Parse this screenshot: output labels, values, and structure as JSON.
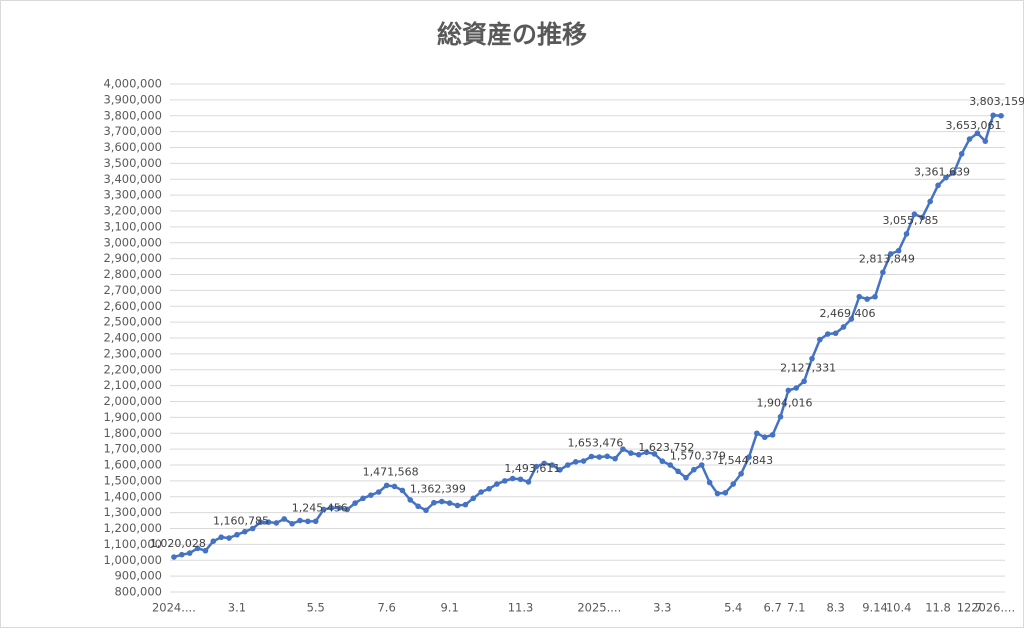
{
  "chart_data": {
    "type": "line",
    "title": "総資産の推移",
    "categories": [
      "2024....",
      null,
      null,
      null,
      null,
      null,
      null,
      null,
      "3.1",
      null,
      null,
      null,
      null,
      null,
      null,
      null,
      null,
      null,
      "5.5",
      null,
      null,
      null,
      null,
      null,
      null,
      null,
      null,
      "7.6",
      null,
      null,
      null,
      null,
      null,
      null,
      null,
      "9.1",
      null,
      null,
      null,
      null,
      null,
      null,
      null,
      null,
      "11.3",
      null,
      null,
      null,
      null,
      null,
      null,
      null,
      null,
      null,
      "2025....",
      null,
      null,
      null,
      null,
      null,
      null,
      null,
      "3.3",
      null,
      null,
      null,
      null,
      null,
      null,
      null,
      null,
      "5.4",
      null,
      null,
      null,
      null,
      "6.7",
      null,
      null,
      "7.1",
      null,
      null,
      null,
      null,
      "8.3",
      null,
      null,
      null,
      null,
      "9.14",
      null,
      null,
      "10.4",
      null,
      null,
      null,
      null,
      "11.8",
      null,
      null,
      null,
      "12.7",
      null,
      null,
      "2026....",
      null
    ],
    "values": [
      1020028,
      1035000,
      1045000,
      1075000,
      1060000,
      1120000,
      1145000,
      1140000,
      1160785,
      1180000,
      1200000,
      1240000,
      1240000,
      1235000,
      1260000,
      1230000,
      1250000,
      1245000,
      1245456,
      1320000,
      1330000,
      1330000,
      1320000,
      1360000,
      1390000,
      1410000,
      1430000,
      1471568,
      1465000,
      1440000,
      1380000,
      1340000,
      1315000,
      1362399,
      1370000,
      1360000,
      1345000,
      1350000,
      1390000,
      1430000,
      1450000,
      1480000,
      1500000,
      1515000,
      1510000,
      1493611,
      1590000,
      1610000,
      1600000,
      1570000,
      1600000,
      1620000,
      1625000,
      1653476,
      1650000,
      1655000,
      1640000,
      1700000,
      1675000,
      1665000,
      1680000,
      1670000,
      1623752,
      1600000,
      1560000,
      1520000,
      1570379,
      1600000,
      1490000,
      1420000,
      1425000,
      1480000,
      1544843,
      1650000,
      1800000,
      1775000,
      1790000,
      1904016,
      2070000,
      2085000,
      2127331,
      2270000,
      2390000,
      2425000,
      2430000,
      2469406,
      2520000,
      2660000,
      2645000,
      2660000,
      2813849,
      2930000,
      2950000,
      3055785,
      3180000,
      3160000,
      3260000,
      3361639,
      3410000,
      3440000,
      3560000,
      3653061,
      3690000,
      3640000,
      3803159,
      3800000
    ],
    "value_labels": [
      "1,020,028",
      null,
      null,
      null,
      null,
      null,
      null,
      null,
      "1,160,785",
      null,
      null,
      null,
      null,
      null,
      null,
      null,
      null,
      null,
      "1,245,456",
      null,
      null,
      null,
      null,
      null,
      null,
      null,
      null,
      "1,471,568",
      null,
      null,
      null,
      null,
      null,
      "1,362,399",
      null,
      null,
      null,
      null,
      null,
      null,
      null,
      null,
      null,
      null,
      null,
      "1,493,611",
      null,
      null,
      null,
      null,
      null,
      null,
      null,
      "1,653,476",
      null,
      null,
      null,
      null,
      null,
      null,
      null,
      null,
      "1,623,752",
      null,
      null,
      null,
      "1,570,379",
      null,
      null,
      null,
      null,
      null,
      "1,544,843",
      null,
      null,
      null,
      null,
      "1,904,016",
      null,
      null,
      "2,127,331",
      null,
      null,
      null,
      null,
      "2,469,406",
      null,
      null,
      null,
      null,
      "2,813,849",
      null,
      null,
      "3,055,785",
      null,
      null,
      null,
      "3,361,639",
      null,
      null,
      null,
      "3,653,061",
      null,
      null,
      "3,803,159",
      null
    ],
    "color": "#4472c4",
    "ylim": [
      800000,
      4000000
    ],
    "yticks": [
      {
        "value": 800000,
        "label": "800,000"
      },
      {
        "value": 900000,
        "label": "900,000"
      },
      {
        "value": 1000000,
        "label": "1,000,000"
      },
      {
        "value": 1100000,
        "label": "1,100,000"
      },
      {
        "value": 1200000,
        "label": "1,200,000"
      },
      {
        "value": 1300000,
        "label": "1,300,000"
      },
      {
        "value": 1400000,
        "label": "1,400,000"
      },
      {
        "value": 1500000,
        "label": "1,500,000"
      },
      {
        "value": 1600000,
        "label": "1,600,000"
      },
      {
        "value": 1700000,
        "label": "1,700,000"
      },
      {
        "value": 1800000,
        "label": "1,800,000"
      },
      {
        "value": 1900000,
        "label": "1,900,000"
      },
      {
        "value": 2000000,
        "label": "2,000,000"
      },
      {
        "value": 2100000,
        "label": "2,100,000"
      },
      {
        "value": 2200000,
        "label": "2,200,000"
      },
      {
        "value": 2300000,
        "label": "2,300,000"
      },
      {
        "value": 2400000,
        "label": "2,400,000"
      },
      {
        "value": 2500000,
        "label": "2,500,000"
      },
      {
        "value": 2600000,
        "label": "2,600,000"
      },
      {
        "value": 2700000,
        "label": "2,700,000"
      },
      {
        "value": 2800000,
        "label": "2,800,000"
      },
      {
        "value": 2900000,
        "label": "2,900,000"
      },
      {
        "value": 3000000,
        "label": "3,000,000"
      },
      {
        "value": 3100000,
        "label": "3,100,000"
      },
      {
        "value": 3200000,
        "label": "3,200,000"
      },
      {
        "value": 3300000,
        "label": "3,300,000"
      },
      {
        "value": 3400000,
        "label": "3,400,000"
      },
      {
        "value": 3500000,
        "label": "3,500,000"
      },
      {
        "value": 3600000,
        "label": "3,600,000"
      },
      {
        "value": 3700000,
        "label": "3,700,000"
      },
      {
        "value": 3800000,
        "label": "3,800,000"
      },
      {
        "value": 3900000,
        "label": "3,900,000"
      },
      {
        "value": 4000000,
        "label": "4,000,000"
      }
    ],
    "grid": true
  }
}
